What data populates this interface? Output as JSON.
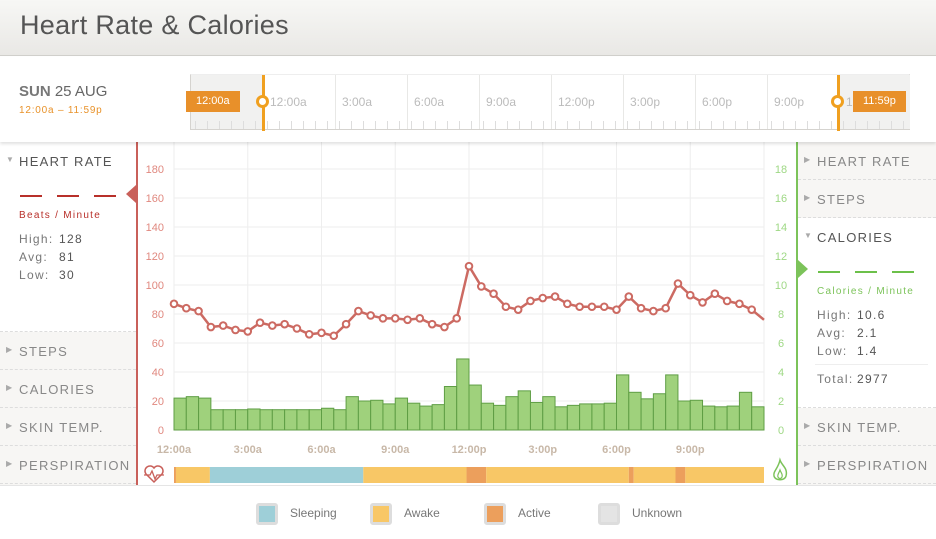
{
  "title": "Heart Rate & Calories",
  "date": {
    "weekday": "SUN",
    "day": "25 AUG",
    "range": "12:00a – 11:59p"
  },
  "timeline": {
    "start_flag": "12:00a",
    "end_flag": "11:59p",
    "labels": [
      "12:00a",
      "3:00a",
      "6:00a",
      "9:00a",
      "12:00p",
      "3:00p",
      "6:00p",
      "9:00p",
      "12"
    ]
  },
  "left_panel": {
    "sections": [
      "HEART RATE",
      "STEPS",
      "CALORIES",
      "SKIN TEMP.",
      "PERSPIRATION"
    ],
    "unit": "Beats / Minute",
    "stats": [
      {
        "label": "High:",
        "value": "128"
      },
      {
        "label": "Avg:",
        "value": "81"
      },
      {
        "label": "Low:",
        "value": "30"
      }
    ]
  },
  "right_panel": {
    "sections": [
      "HEART RATE",
      "STEPS",
      "CALORIES",
      "SKIN TEMP.",
      "PERSPIRATION"
    ],
    "unit": "Calories / Minute",
    "stats": [
      {
        "label": "High:",
        "value": "10.6"
      },
      {
        "label": "Avg:",
        "value": "2.1"
      },
      {
        "label": "Low:",
        "value": "1.4"
      }
    ],
    "total_label": "Total:",
    "total_value": "2977"
  },
  "colors": {
    "heart": "#c9605a",
    "calories": "#7cc35a",
    "sleeping": "#9ecfd8",
    "awake": "#f8c766",
    "active": "#ec9f5c",
    "unknown": "#e4e4e4"
  },
  "legend": [
    {
      "label": "Sleeping",
      "color": "#9ecfd8"
    },
    {
      "label": "Awake",
      "color": "#f8c766"
    },
    {
      "label": "Active",
      "color": "#ec9f5c"
    },
    {
      "label": "Unknown",
      "color": "#e4e4e4"
    }
  ],
  "chart_data": {
    "type": "line+bar",
    "x_labels": [
      "12:00a",
      "3:00a",
      "6:00a",
      "9:00a",
      "12:00p",
      "3:00p",
      "6:00p",
      "9:00p"
    ],
    "left_axis": {
      "ticks": [
        0,
        20,
        40,
        60,
        80,
        100,
        120,
        140,
        160,
        180
      ],
      "ylim": [
        0,
        200
      ]
    },
    "right_axis": {
      "ticks": [
        0,
        2,
        4,
        6,
        8,
        10,
        12,
        14,
        16,
        18
      ],
      "ylim": [
        0,
        20
      ]
    },
    "series": [
      {
        "name": "Heart Rate",
        "type": "line",
        "values": [
          87,
          84,
          82,
          71,
          72,
          69,
          68,
          74,
          72,
          73,
          70,
          66,
          67,
          65,
          73,
          82,
          79,
          77,
          77,
          76,
          77,
          73,
          71,
          77,
          113,
          99,
          94,
          85,
          83,
          89,
          91,
          92,
          87,
          85,
          85,
          85,
          83,
          92,
          84,
          82,
          84,
          101,
          93,
          88,
          94,
          89,
          87,
          83,
          76
        ]
      },
      {
        "name": "Calories",
        "type": "bar",
        "values": [
          2.2,
          2.3,
          2.2,
          1.4,
          1.4,
          1.4,
          1.45,
          1.4,
          1.4,
          1.4,
          1.4,
          1.4,
          1.5,
          1.4,
          2.3,
          2.0,
          2.05,
          1.8,
          2.2,
          1.85,
          1.65,
          1.75,
          3.0,
          4.9,
          3.1,
          1.85,
          1.7,
          2.3,
          2.7,
          1.9,
          2.3,
          1.6,
          1.7,
          1.8,
          1.8,
          1.85,
          3.8,
          2.6,
          2.15,
          2.5,
          3.8,
          2.0,
          2.05,
          1.65,
          1.6,
          1.65,
          2.6,
          1.6
        ]
      }
    ],
    "activity": [
      {
        "state": "active",
        "from": 0,
        "to": 0.08
      },
      {
        "state": "awake",
        "from": 0.08,
        "to": 1.46
      },
      {
        "state": "sleeping",
        "from": 1.46,
        "to": 7.7
      },
      {
        "state": "awake",
        "from": 7.7,
        "to": 11.9
      },
      {
        "state": "active",
        "from": 11.9,
        "to": 12.7
      },
      {
        "state": "awake",
        "from": 12.7,
        "to": 18.5
      },
      {
        "state": "active",
        "from": 18.5,
        "to": 18.7
      },
      {
        "state": "awake",
        "from": 18.7,
        "to": 20.4
      },
      {
        "state": "active",
        "from": 20.4,
        "to": 20.8
      },
      {
        "state": "awake",
        "from": 20.8,
        "to": 24
      }
    ]
  }
}
